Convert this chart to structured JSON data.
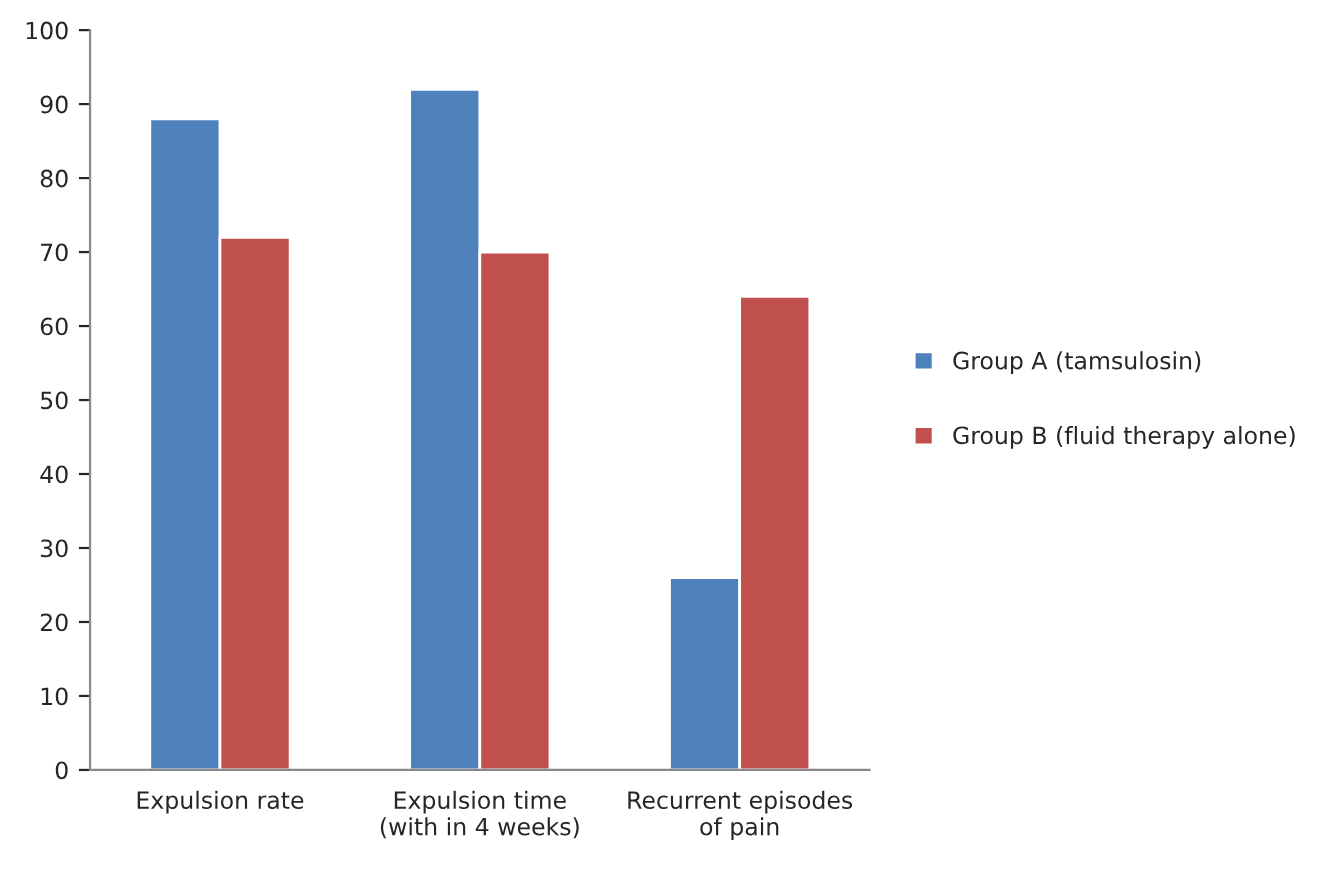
{
  "chart_data": {
    "type": "bar",
    "categories": [
      "Expulsion rate",
      "Expulsion time\n(with in 4 weeks)",
      "Recurrent episodes\nof pain"
    ],
    "series": [
      {
        "name": "Group A (tamsulosin)",
        "color": "#4f81bd",
        "values": [
          88,
          92,
          26
        ]
      },
      {
        "name": "Group B (fluid therapy alone)",
        "color": "#c0504d",
        "values": [
          72,
          70,
          64
        ]
      }
    ],
    "ylim": [
      0,
      100
    ],
    "yticks": [
      0,
      10,
      20,
      30,
      40,
      50,
      60,
      70,
      80,
      90,
      100
    ],
    "grid": false,
    "legend": "right"
  }
}
